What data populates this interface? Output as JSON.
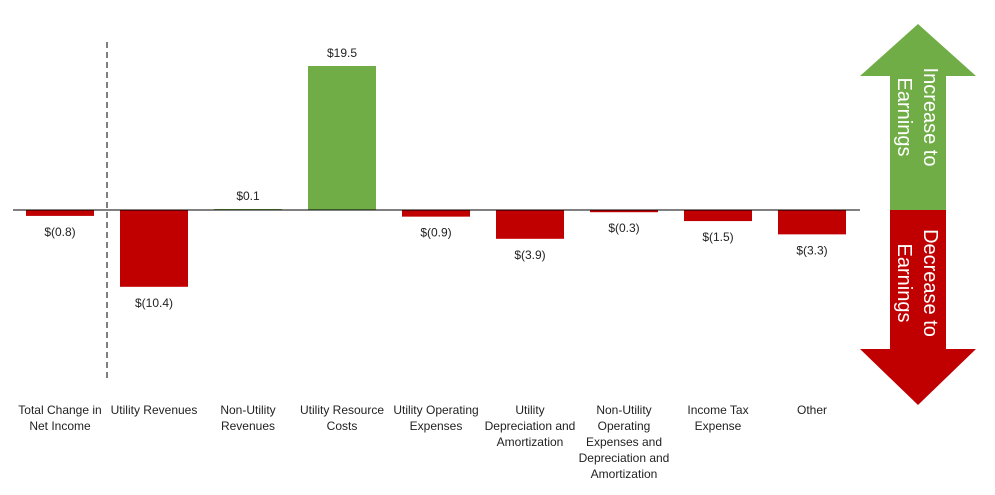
{
  "chart_data": {
    "type": "bar",
    "categories": [
      "Total Change in Net Income",
      "Utility Revenues",
      "Non-Utility Revenues",
      "Utility Resource Costs",
      "Utility Operating Expenses",
      "Utility Depreciation and Amortization",
      "Non-Utility Operating Expenses and Depreciation and Amortization",
      "Income Tax Expense",
      "Other"
    ],
    "values": [
      -0.8,
      -10.4,
      0.1,
      19.5,
      -0.9,
      -3.9,
      -0.3,
      -1.5,
      -3.3
    ],
    "data_labels": [
      "$(0.8)",
      "$(10.4)",
      "$0.1",
      "$19.5",
      "$(0.9)",
      "$(3.9)",
      "$(0.3)",
      "$(1.5)",
      "$(3.3)"
    ],
    "ylim": [
      -22,
      24
    ],
    "title": "",
    "xlabel": "",
    "ylabel": "",
    "grid": false,
    "legend": "none",
    "colors": {
      "increase": "#70ad47",
      "decrease": "#c00000",
      "axis": "#000000"
    }
  },
  "arrows": {
    "increase_label_line1": "Increase to",
    "increase_label_line2": "Earnings",
    "decrease_label_line1": "Decrease to",
    "decrease_label_line2": "Earnings",
    "increase_color": "#70ad47",
    "decrease_color": "#c00000"
  }
}
